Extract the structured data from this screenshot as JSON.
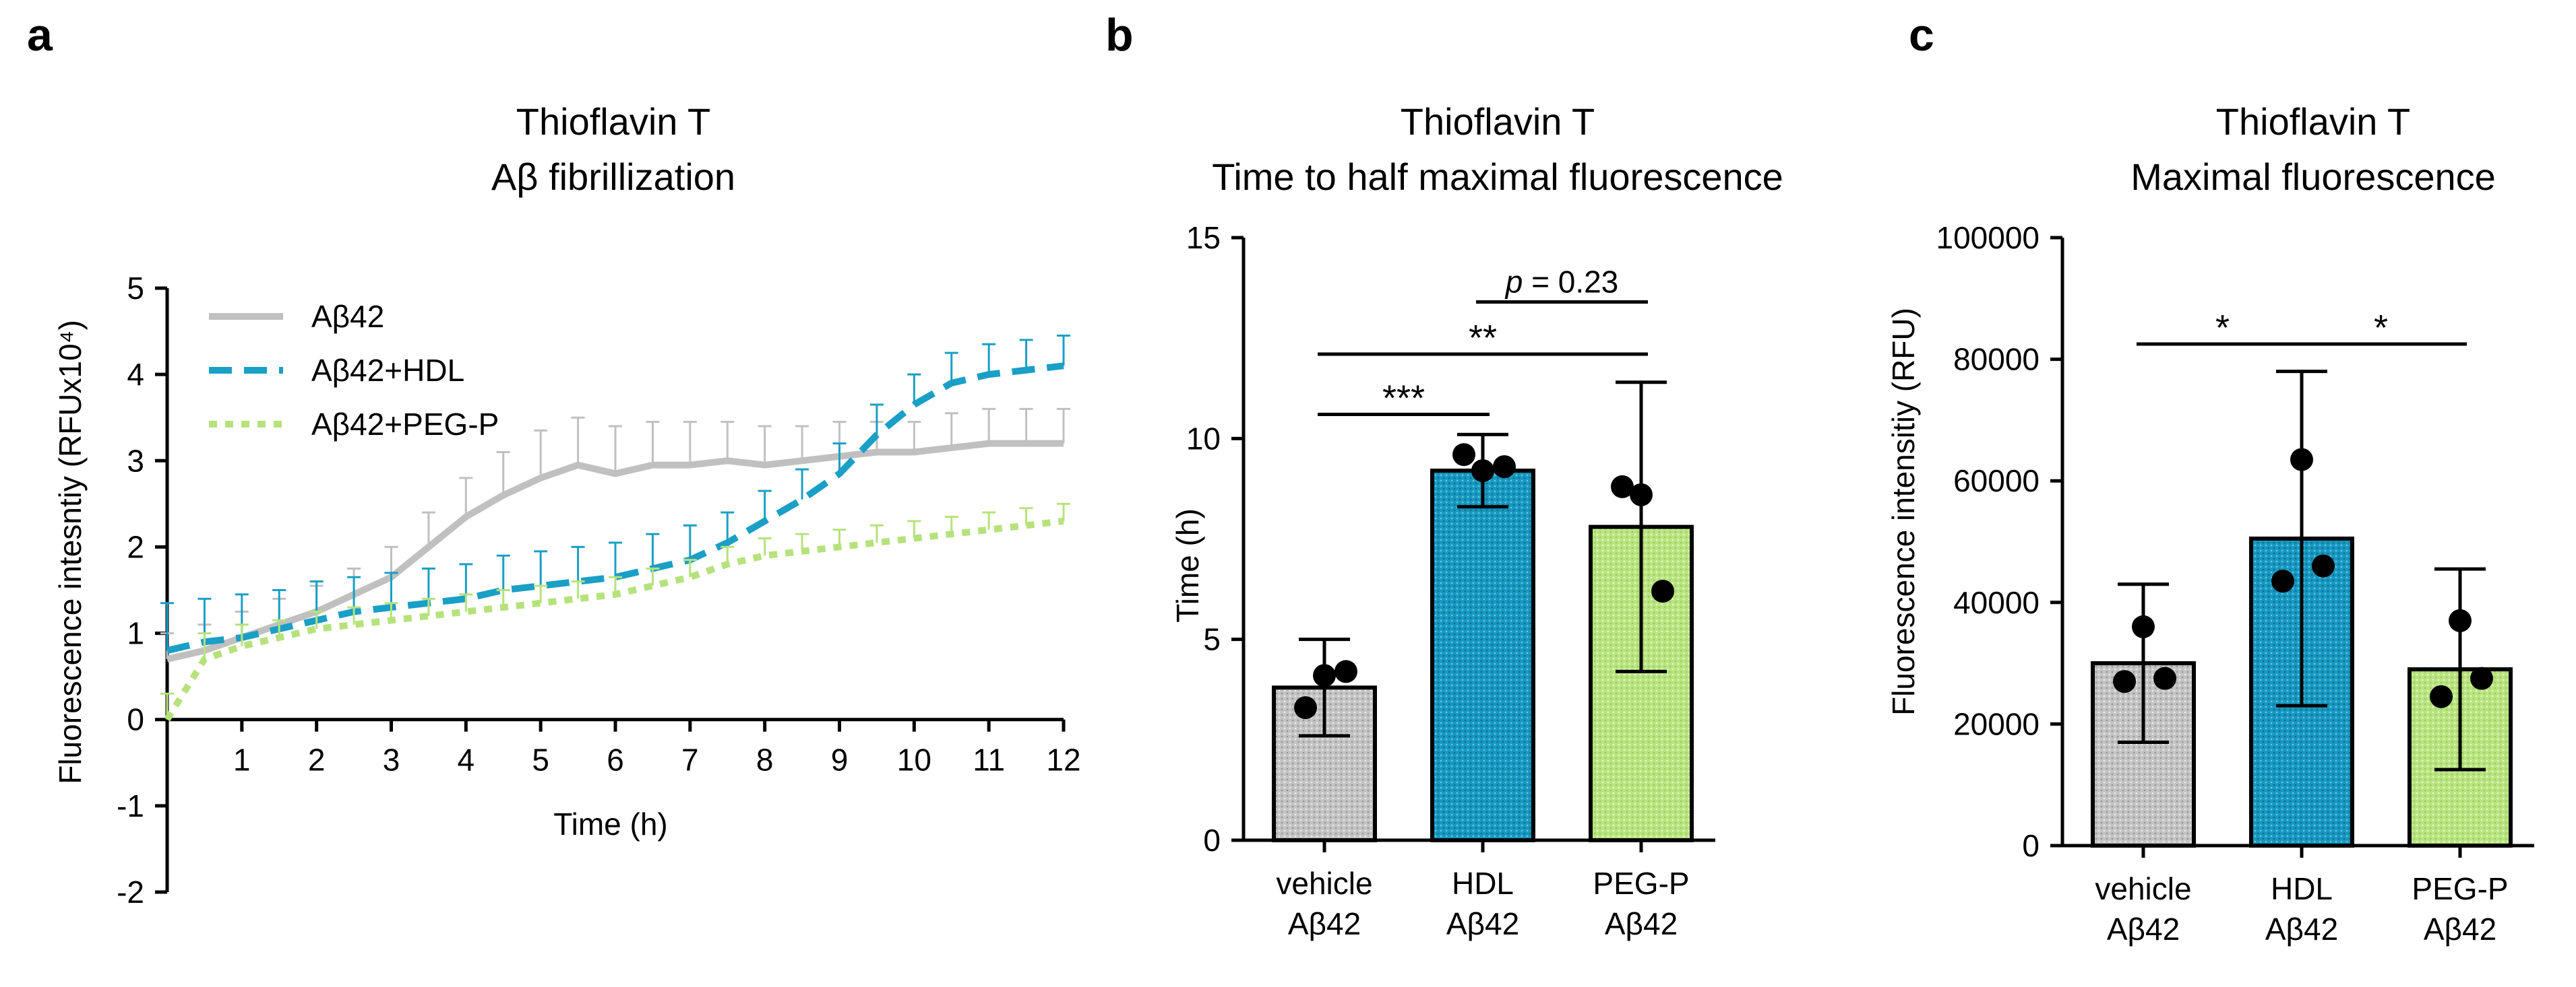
{
  "colors": {
    "gray": "#c0c0c0",
    "blue": "#1a9fc6",
    "green": "#b6e27c",
    "axis": "#000000"
  },
  "chart_data": [
    {
      "panel": "a",
      "type": "line",
      "title": [
        "Thioflavin T",
        "Aβ fibrillization"
      ],
      "xlabel": "Time (h)",
      "ylabel": "Fluorescence intesntiy (RFUx10⁴)",
      "ylim": [
        -2,
        5
      ],
      "xlim": [
        0,
        12
      ],
      "xticks": [
        "1",
        "2",
        "3",
        "4",
        "5",
        "6",
        "7",
        "8",
        "9",
        "10",
        "11",
        "12"
      ],
      "yticks": [
        "-2",
        "-1",
        "0",
        "1",
        "2",
        "3",
        "4",
        "5"
      ],
      "legend_position": "top-left",
      "x": [
        0,
        0.5,
        1,
        1.5,
        2,
        2.5,
        3,
        3.5,
        4,
        4.5,
        5,
        5.5,
        6,
        6.5,
        7,
        7.5,
        8,
        8.5,
        9,
        9.5,
        10,
        10.5,
        11,
        11.5,
        12
      ],
      "series": [
        {
          "name": "Aβ42",
          "style": "solid",
          "color": "#c0c0c0",
          "values": [
            0.7,
            0.8,
            0.95,
            1.1,
            1.25,
            1.45,
            1.65,
            2.0,
            2.35,
            2.6,
            2.8,
            2.95,
            2.85,
            2.95,
            2.95,
            3.0,
            2.95,
            3.0,
            3.05,
            3.1,
            3.1,
            3.15,
            3.2,
            3.2,
            3.2
          ],
          "errors": [
            0.3,
            0.3,
            0.3,
            0.3,
            0.3,
            0.3,
            0.35,
            0.4,
            0.45,
            0.5,
            0.55,
            0.55,
            0.55,
            0.5,
            0.5,
            0.45,
            0.45,
            0.4,
            0.4,
            0.35,
            0.35,
            0.4,
            0.4,
            0.4,
            0.4
          ]
        },
        {
          "name": "Aβ42+HDL",
          "style": "dashed",
          "color": "#1a9fc6",
          "values": [
            0.8,
            0.9,
            0.95,
            1.05,
            1.15,
            1.25,
            1.3,
            1.35,
            1.4,
            1.5,
            1.55,
            1.6,
            1.65,
            1.75,
            1.85,
            2.05,
            2.3,
            2.55,
            2.85,
            3.3,
            3.65,
            3.9,
            4.0,
            4.05,
            4.1
          ],
          "errors": [
            0.55,
            0.5,
            0.5,
            0.45,
            0.45,
            0.4,
            0.4,
            0.4,
            0.4,
            0.4,
            0.4,
            0.4,
            0.4,
            0.4,
            0.4,
            0.35,
            0.35,
            0.35,
            0.35,
            0.35,
            0.35,
            0.35,
            0.35,
            0.35,
            0.35
          ]
        },
        {
          "name": "Aβ42+PEG-P",
          "style": "dotted",
          "color": "#b6e27c",
          "values": [
            0.0,
            0.7,
            0.85,
            0.95,
            1.05,
            1.1,
            1.15,
            1.2,
            1.25,
            1.3,
            1.35,
            1.4,
            1.45,
            1.55,
            1.65,
            1.8,
            1.9,
            1.95,
            2.0,
            2.05,
            2.1,
            2.15,
            2.2,
            2.25,
            2.3
          ],
          "errors": [
            0.3,
            0.3,
            0.25,
            0.2,
            0.2,
            0.2,
            0.2,
            0.2,
            0.2,
            0.2,
            0.2,
            0.2,
            0.2,
            0.2,
            0.2,
            0.2,
            0.2,
            0.2,
            0.2,
            0.2,
            0.2,
            0.2,
            0.2,
            0.2,
            0.2
          ]
        }
      ]
    },
    {
      "panel": "b",
      "type": "bar",
      "title": [
        "Thioflavin T",
        "Time to half maximal fluorescence"
      ],
      "xlabel": "",
      "ylabel": "Time (h)",
      "ylim": [
        0,
        15
      ],
      "yticks": [
        "0",
        "5",
        "10",
        "15"
      ],
      "categories": [
        [
          "vehicle",
          "Aβ42"
        ],
        [
          "HDL",
          "Aβ42"
        ],
        [
          "PEG-P",
          "Aβ42"
        ]
      ],
      "values": [
        3.8,
        9.2,
        7.8
      ],
      "errors": [
        1.2,
        0.9,
        3.6
      ],
      "colors": [
        "#c0c0c0",
        "#1a9fc6",
        "#b6e27c"
      ],
      "points": [
        [
          3.3,
          4.1,
          4.2
        ],
        [
          9.6,
          9.2,
          9.3
        ],
        [
          8.8,
          8.6,
          6.2
        ]
      ],
      "annotations": [
        {
          "from": 0,
          "to": 1,
          "y": 10.6,
          "label": "***"
        },
        {
          "from": 0,
          "to": 2,
          "y": 12.1,
          "label": "**"
        },
        {
          "from": 1,
          "to": 2,
          "y": 13.4,
          "label_italic": "p",
          "label": " = 0.23"
        }
      ]
    },
    {
      "panel": "c",
      "type": "bar",
      "title": [
        "Thioflavin T",
        "Maximal fluorescence"
      ],
      "xlabel": "",
      "ylabel": "Fluorescence intensitiy (RFU)",
      "ylim": [
        0,
        100000
      ],
      "yticks": [
        "0",
        "20000",
        "40000",
        "60000",
        "80000",
        "100000"
      ],
      "categories": [
        [
          "vehicle",
          "Aβ42"
        ],
        [
          "HDL",
          "Aβ42"
        ],
        [
          "PEG-P",
          "Aβ42"
        ]
      ],
      "values": [
        30000,
        50500,
        29000
      ],
      "errors": [
        13000,
        27500,
        16500
      ],
      "colors": [
        "#c0c0c0",
        "#1a9fc6",
        "#b6e27c"
      ],
      "points": [
        [
          27000,
          36000,
          27500
        ],
        [
          43500,
          63500,
          46000
        ],
        [
          24500,
          37000,
          27500
        ]
      ],
      "annotations": [
        {
          "from": 0,
          "to": 1,
          "y": 82500,
          "label": "*"
        },
        {
          "from": 1,
          "to": 2,
          "y": 82500,
          "label": "*"
        }
      ]
    }
  ],
  "panel_letters": [
    "a",
    "b",
    "c"
  ]
}
